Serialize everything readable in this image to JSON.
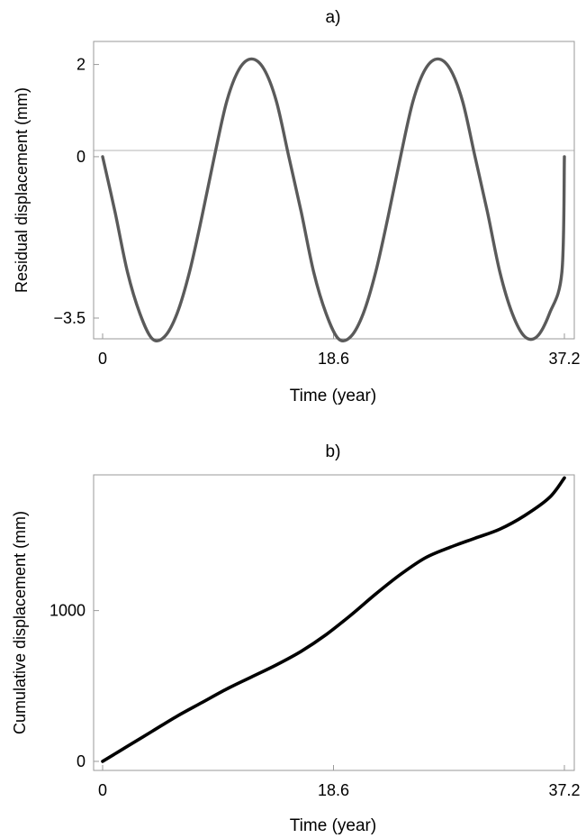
{
  "chart_data": [
    {
      "type": "line",
      "title": "a)",
      "xlabel": "Time (year)",
      "ylabel": "Residual displacement (mm)",
      "xlim": [
        0,
        37.2
      ],
      "ylim": [
        -3.95,
        2.5
      ],
      "xticks": [
        0,
        18.6,
        37.2
      ],
      "xtick_labels": [
        "0",
        "18.6",
        "37.2"
      ],
      "yticks": [
        2,
        0,
        -3.5
      ],
      "ytick_labels": [
        "2",
        "0",
        "−3.5"
      ],
      "grid": false,
      "zero_line": true,
      "line_color": "#5a5a5a",
      "series": [
        {
          "x": [
            0,
            1,
            2,
            3,
            4,
            5,
            6,
            7,
            8,
            9,
            10,
            11,
            12,
            13,
            14,
            15,
            16,
            17,
            18,
            19,
            20,
            21,
            22,
            23,
            24,
            25,
            26,
            27,
            28,
            29,
            30,
            31,
            32,
            33,
            34,
            35,
            36,
            37,
            37.2
          ],
          "y": [
            0,
            -1.2,
            -2.5,
            -3.4,
            -3.95,
            -3.9,
            -3.4,
            -2.5,
            -1.3,
            0,
            1.2,
            1.9,
            2.12,
            1.9,
            1.2,
            0,
            -1.2,
            -2.5,
            -3.4,
            -3.95,
            -3.9,
            -3.4,
            -2.5,
            -1.3,
            0,
            1.2,
            1.9,
            2.12,
            1.9,
            1.2,
            0,
            -1.2,
            -2.5,
            -3.4,
            -3.9,
            -3.9,
            -3.4,
            -2.5,
            0
          ]
        }
      ]
    },
    {
      "type": "line",
      "title": "b)",
      "xlabel": "Time (year)",
      "ylabel": "Cumulative displacement (mm)",
      "xlim": [
        0,
        37.2
      ],
      "ylim": [
        -60,
        1900
      ],
      "xticks": [
        0,
        18.6,
        37.2
      ],
      "xtick_labels": [
        "0",
        "18.6",
        "37.2"
      ],
      "yticks": [
        0,
        1000
      ],
      "ytick_labels": [
        "0",
        "1000"
      ],
      "grid": false,
      "line_color": "#000000",
      "series": [
        {
          "x": [
            0,
            2,
            4,
            6,
            8,
            10,
            12,
            14,
            16,
            18,
            20,
            22,
            24,
            26,
            28,
            30,
            32,
            34,
            36,
            37.2
          ],
          "y": [
            0,
            100,
            200,
            300,
            390,
            480,
            560,
            640,
            730,
            840,
            970,
            1110,
            1240,
            1350,
            1420,
            1480,
            1540,
            1630,
            1750,
            1880
          ]
        }
      ]
    }
  ]
}
